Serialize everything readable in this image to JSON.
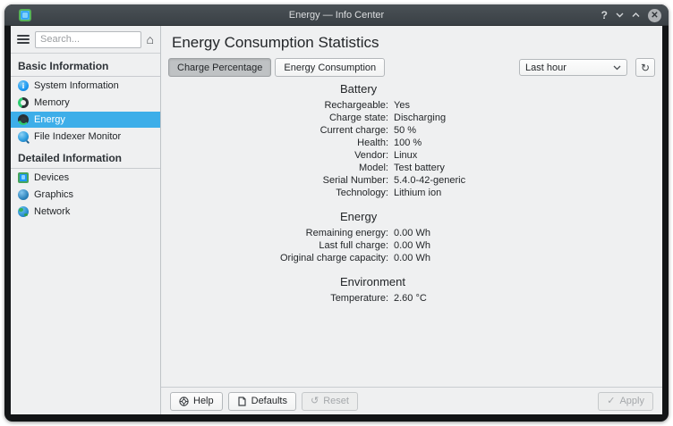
{
  "window": {
    "title": "Energy — Info Center",
    "controls": {
      "help": "?",
      "minimize": "chevron-down",
      "maximize": "chevron-up",
      "close": "✕"
    }
  },
  "sidebar": {
    "search_placeholder": "Search...",
    "sections": [
      {
        "label": "Basic Information",
        "items": [
          {
            "label": "System Information",
            "icon": "info-icon",
            "selected": false
          },
          {
            "label": "Memory",
            "icon": "memory-icon",
            "selected": false
          },
          {
            "label": "Energy",
            "icon": "energy-icon",
            "selected": true
          },
          {
            "label": "File Indexer Monitor",
            "icon": "magnifier-icon",
            "selected": false
          }
        ]
      },
      {
        "label": "Detailed Information",
        "items": [
          {
            "label": "Devices",
            "icon": "devices-icon",
            "selected": false
          },
          {
            "label": "Graphics",
            "icon": "graphics-icon",
            "selected": false
          },
          {
            "label": "Network",
            "icon": "network-icon",
            "selected": false
          }
        ]
      }
    ]
  },
  "main": {
    "title": "Energy Consumption Statistics",
    "tabs": [
      {
        "label": "Charge Percentage",
        "active": true
      },
      {
        "label": "Energy Consumption",
        "active": false
      }
    ],
    "period": "Last hour",
    "groups": [
      {
        "title": "Battery",
        "rows": [
          {
            "label": "Rechargeable:",
            "value": "Yes"
          },
          {
            "label": "Charge state:",
            "value": "Discharging"
          },
          {
            "label": "Current charge:",
            "value": "50 %"
          },
          {
            "label": "Health:",
            "value": "100 %"
          },
          {
            "label": "Vendor:",
            "value": "Linux"
          },
          {
            "label": "Model:",
            "value": "Test battery"
          },
          {
            "label": "Serial Number:",
            "value": "5.4.0-42-generic"
          },
          {
            "label": "Technology:",
            "value": "Lithium ion"
          }
        ]
      },
      {
        "title": "Energy",
        "rows": [
          {
            "label": "Remaining energy:",
            "value": "0.00 Wh"
          },
          {
            "label": "Last full charge:",
            "value": "0.00 Wh"
          },
          {
            "label": "Original charge capacity:",
            "value": "0.00 Wh"
          }
        ]
      },
      {
        "title": "Environment",
        "rows": [
          {
            "label": "Temperature:",
            "value": "2.60 °C"
          }
        ]
      }
    ]
  },
  "footer": {
    "help_label": "Help",
    "defaults_label": "Defaults",
    "reset_label": "Reset",
    "apply_label": "Apply",
    "reset_icon": "↺",
    "apply_icon": "✓",
    "refresh_icon": "↻"
  },
  "colors": {
    "highlight": "#3daee9",
    "titlebar": "#3a4045",
    "background": "#eff0f1"
  }
}
